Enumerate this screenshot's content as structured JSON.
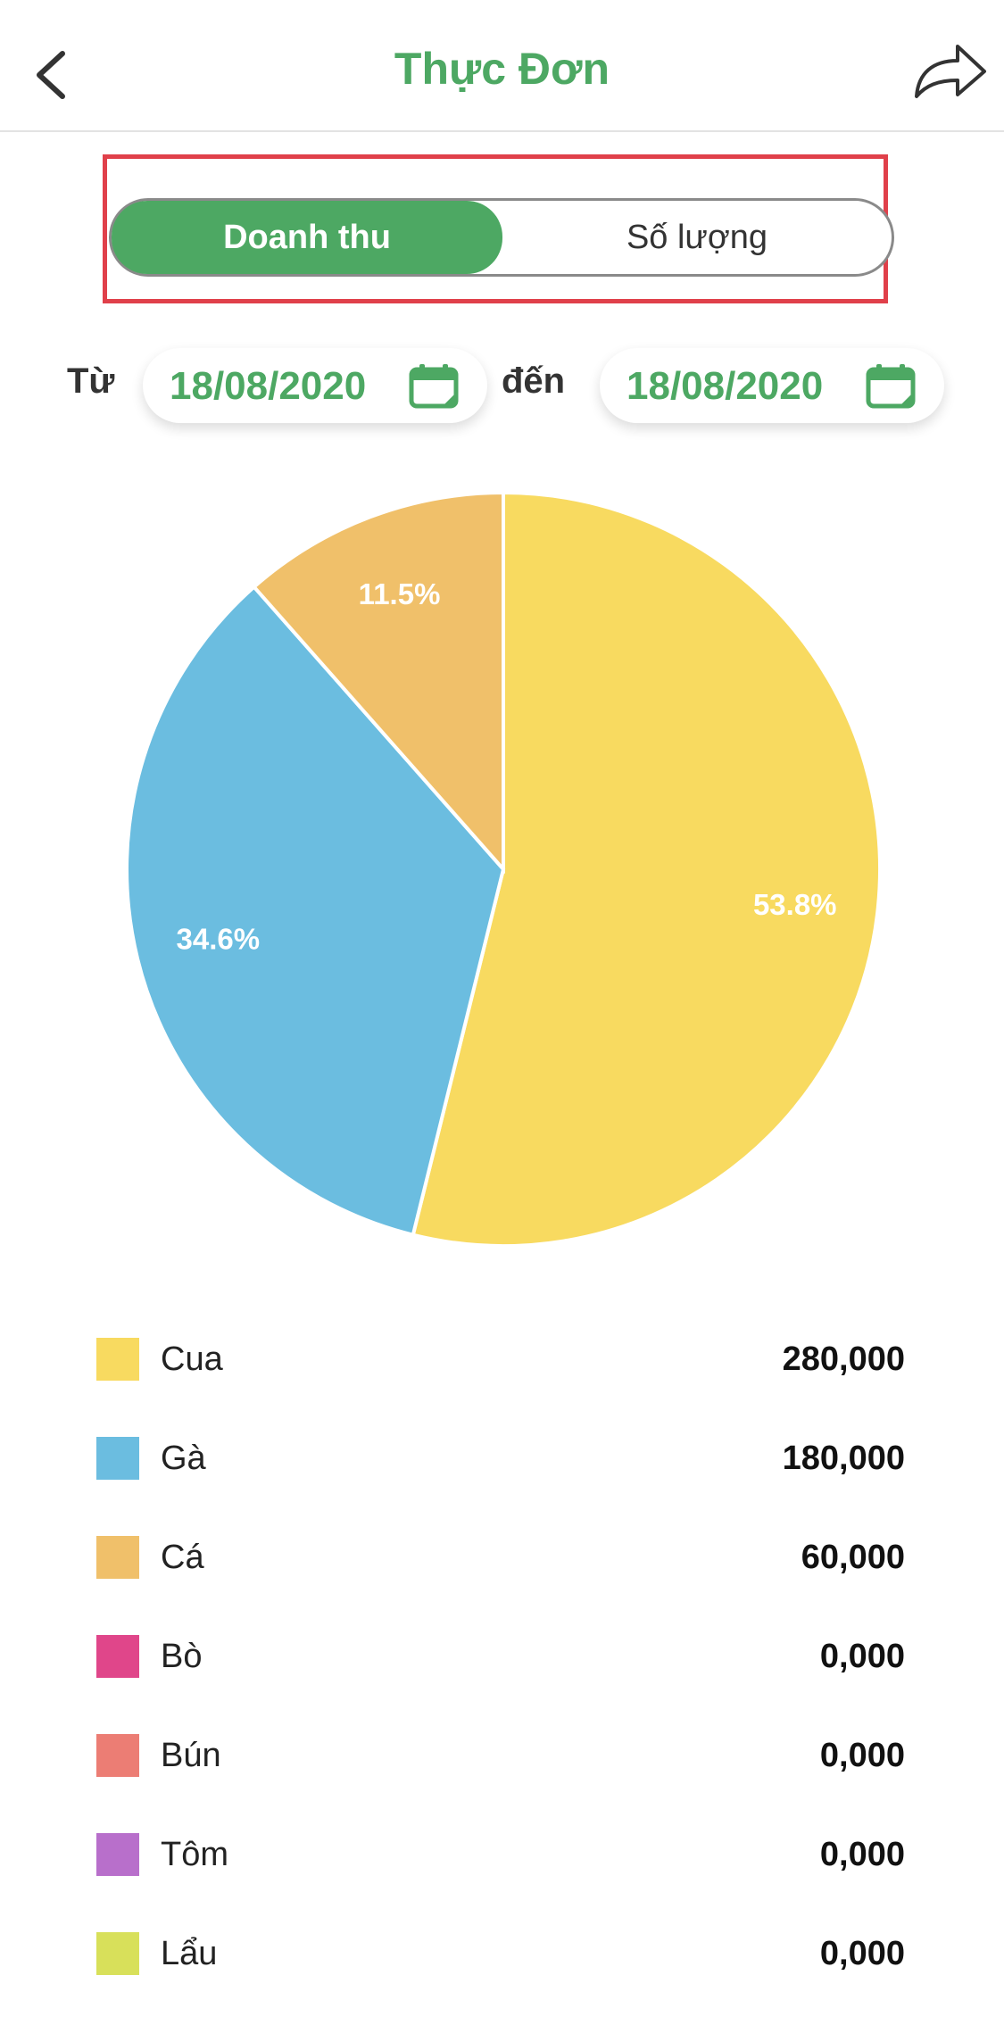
{
  "header": {
    "title": "Thực Đơn",
    "back_icon": "chevron-left-icon",
    "share_icon": "share-forward-icon"
  },
  "tabs": [
    {
      "label": "Doanh thu",
      "active": true
    },
    {
      "label": "Số lượng",
      "active": false
    }
  ],
  "date_range": {
    "from_label": "Từ",
    "from_date": "18/08/2020",
    "to_label": "đến",
    "to_date": "18/08/2020",
    "icon": "calendar-icon"
  },
  "colors": {
    "accent": "#4da863",
    "highlight_border": "#e0404a"
  },
  "chart_data": {
    "type": "pie",
    "slices": [
      {
        "label": "Cua",
        "percent": 53.8,
        "display": "53.8%",
        "color": "#f8da60"
      },
      {
        "label": "Gà",
        "percent": 34.6,
        "display": "34.6%",
        "color": "#6bbde0"
      },
      {
        "label": "Cá",
        "percent": 11.5,
        "display": "11.5%",
        "color": "#f0c06a"
      }
    ]
  },
  "legend": [
    {
      "name": "Cua",
      "value": "280,000",
      "color": "#f8da60"
    },
    {
      "name": "Gà",
      "value": "180,000",
      "color": "#6bbde0"
    },
    {
      "name": "Cá",
      "value": "60,000",
      "color": "#f0c06a"
    },
    {
      "name": "Bò",
      "value": "0,000",
      "color": "#e0468a"
    },
    {
      "name": "Bún",
      "value": "0,000",
      "color": "#ec7d74"
    },
    {
      "name": "Tôm",
      "value": "0,000",
      "color": "#b86fcb"
    },
    {
      "name": "Lẩu",
      "value": "0,000",
      "color": "#d8e05a"
    }
  ]
}
